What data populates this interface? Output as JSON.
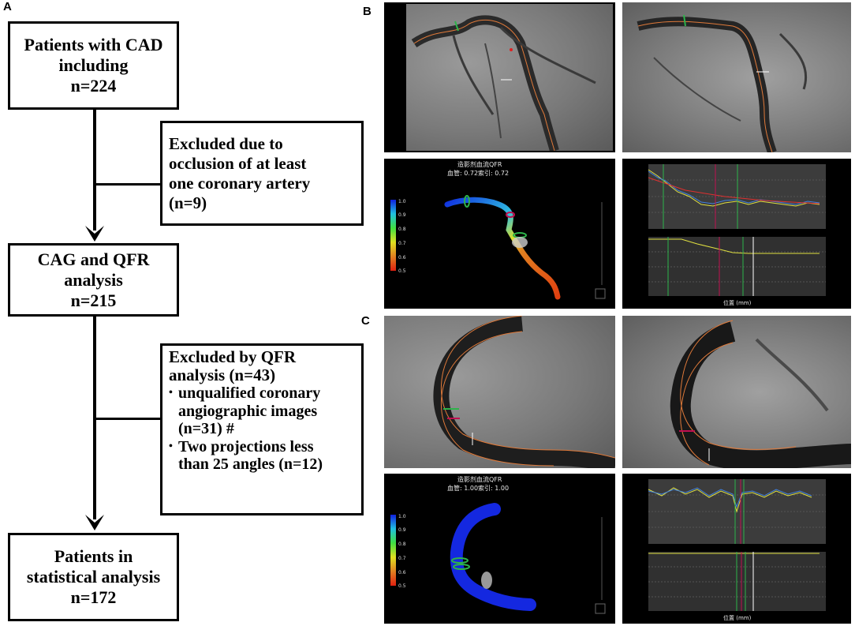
{
  "panels": {
    "a": "A",
    "b": "B",
    "c": "C"
  },
  "flow": {
    "box1": {
      "line1": "Patients with CAD",
      "line2": "including",
      "line3": "n=224"
    },
    "exclude1": {
      "line1": "Excluded due to",
      "line2": "occlusion of at least",
      "line3": "one coronary artery",
      "line4": "(n=9)"
    },
    "box2": {
      "line1": "CAG and QFR",
      "line2": "analysis",
      "line3": "n=215"
    },
    "exclude2": {
      "line1": "Excluded by QFR",
      "line2": "analysis (n=43)",
      "bullet1_line1": "unqualified coronary",
      "bullet1_line2": "angiographic images",
      "bullet1_line3": "(n=31) #",
      "bullet2_line1": "Two projections less",
      "bullet2_line2": "than 25 angles (n=12)"
    },
    "box3": {
      "line1": "Patients in",
      "line2": "statistical analysis",
      "line3": "n=172"
    }
  },
  "qfr_b": {
    "title": "造影剂血流QFR",
    "values": "血管: 0.72索引: 0.72"
  },
  "qfr_c": {
    "title": "造影剂血流QFR",
    "values": "血管: 1.00索引: 1.00"
  },
  "colorbar": {
    "ticks": [
      "1.0",
      "0.9",
      "0.8",
      "0.7",
      "0.6",
      "0.5"
    ]
  },
  "plot": {
    "xlabel": "位置 (mm)"
  }
}
